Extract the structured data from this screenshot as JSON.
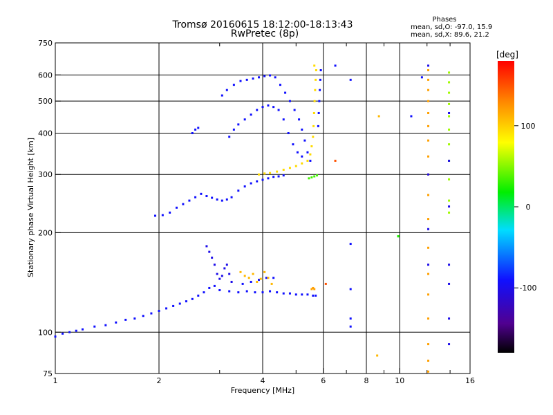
{
  "chart_data": {
    "type": "scatter",
    "title": "Tromsø 20160615 18:12:00-18:13:43",
    "subtitle": "RwPretec (8p)",
    "stats": {
      "heading": "Phases",
      "line_o": "mean, sd,O: -97.0, 15.9",
      "line_x": "mean, sd,X:  89.6, 21.2"
    },
    "xlabel": "Frequency [MHz]",
    "ylabel": "Stationary phase Virtual Height [km]",
    "x_scale": "log",
    "y_scale": "log",
    "xlim": [
      1,
      16
    ],
    "ylim": [
      75,
      750
    ],
    "grid": true,
    "x_ticks": [
      1,
      2,
      4,
      6,
      8,
      10,
      16
    ],
    "x_tick_labels": [
      "1",
      "2",
      "4",
      "6",
      "8",
      "10",
      "16"
    ],
    "x_grid_lines": [
      2,
      4,
      6,
      8,
      10
    ],
    "x_minor_ticks": [
      3,
      5,
      7,
      9,
      12,
      14
    ],
    "y_ticks": [
      75,
      100,
      200,
      300,
      400,
      500,
      600,
      750
    ],
    "y_tick_labels": [
      "75",
      "100",
      "200",
      "300",
      "400",
      "500",
      "600",
      "750"
    ],
    "y_grid_lines": [
      100,
      200,
      300,
      400,
      500,
      600
    ],
    "colorbar": {
      "label": "[deg]",
      "range": [
        -180,
        180
      ],
      "ticks": [
        100,
        0,
        -100
      ],
      "tick_labels": [
        "100",
        "0",
        "-100"
      ],
      "colormap": "rainbow (black-purple-blue-cyan-green-yellow-orange-red)"
    },
    "traces": [
      {
        "name": "",
        "phase": -100,
        "points": [
          [
            1.0,
            97
          ],
          [
            1.05,
            99
          ],
          [
            1.1,
            100
          ],
          [
            1.15,
            101
          ],
          [
            1.2,
            102
          ],
          [
            1.3,
            104
          ],
          [
            1.4,
            105
          ],
          [
            1.5,
            107
          ],
          [
            1.6,
            109
          ],
          [
            1.7,
            110
          ],
          [
            1.8,
            112
          ],
          [
            1.9,
            114
          ],
          [
            2.0,
            116
          ],
          [
            2.1,
            118
          ],
          [
            2.2,
            120
          ],
          [
            2.3,
            122
          ],
          [
            2.4,
            124
          ],
          [
            2.5,
            126
          ],
          [
            2.6,
            129
          ],
          [
            2.7,
            132
          ],
          [
            2.8,
            136
          ],
          [
            2.9,
            138
          ],
          [
            3.0,
            134
          ],
          [
            3.2,
            133
          ],
          [
            3.4,
            132
          ],
          [
            3.6,
            133
          ],
          [
            3.8,
            132
          ],
          [
            4.0,
            132
          ],
          [
            4.2,
            133
          ],
          [
            4.4,
            132
          ],
          [
            4.6,
            131
          ],
          [
            4.8,
            131
          ],
          [
            5.0,
            130
          ],
          [
            5.2,
            130
          ],
          [
            5.4,
            130
          ],
          [
            5.6,
            129
          ],
          [
            5.7,
            129
          ]
        ]
      },
      {
        "name": "",
        "phase": -110,
        "points": [
          [
            2.75,
            182
          ],
          [
            2.8,
            175
          ],
          [
            2.85,
            168
          ],
          [
            2.9,
            160
          ],
          [
            2.95,
            150
          ],
          [
            3.0,
            145
          ],
          [
            3.05,
            148
          ],
          [
            3.1,
            156
          ],
          [
            3.15,
            160
          ],
          [
            3.2,
            150
          ],
          [
            3.25,
            142
          ]
        ]
      },
      {
        "name": "",
        "phase": -100,
        "points": [
          [
            3.5,
            140
          ],
          [
            3.7,
            142
          ],
          [
            3.9,
            144
          ],
          [
            4.1,
            146
          ],
          [
            4.3,
            146
          ]
        ]
      },
      {
        "name": "",
        "phase": 110,
        "points": [
          [
            3.45,
            152
          ],
          [
            3.55,
            148
          ],
          [
            3.65,
            146
          ],
          [
            3.75,
            150
          ],
          [
            3.85,
            142
          ],
          [
            3.95,
            145
          ],
          [
            4.05,
            152
          ],
          [
            4.15,
            146
          ],
          [
            4.25,
            140
          ]
        ]
      },
      {
        "name": "",
        "phase": 120,
        "points": [
          [
            5.55,
            135
          ],
          [
            5.6,
            136
          ],
          [
            5.65,
            135
          ]
        ]
      },
      {
        "name": "",
        "phase": -100,
        "points": [
          [
            1.95,
            225
          ],
          [
            2.05,
            226
          ],
          [
            2.15,
            230
          ],
          [
            2.25,
            238
          ],
          [
            2.35,
            244
          ],
          [
            2.45,
            250
          ],
          [
            2.55,
            256
          ],
          [
            2.65,
            262
          ],
          [
            2.75,
            258
          ],
          [
            2.85,
            255
          ],
          [
            2.95,
            252
          ],
          [
            3.05,
            250
          ],
          [
            3.15,
            252
          ],
          [
            3.25,
            256
          ],
          [
            3.4,
            268
          ],
          [
            3.55,
            276
          ],
          [
            3.7,
            282
          ],
          [
            3.85,
            286
          ],
          [
            4.0,
            289
          ],
          [
            4.15,
            292
          ],
          [
            4.3,
            295
          ],
          [
            4.45,
            296
          ],
          [
            4.6,
            298
          ]
        ]
      },
      {
        "name": "",
        "phase": 95,
        "points": [
          [
            3.9,
            300
          ],
          [
            4.05,
            302
          ],
          [
            4.2,
            303
          ],
          [
            4.4,
            306
          ],
          [
            4.6,
            310
          ],
          [
            4.8,
            314
          ],
          [
            5.0,
            318
          ],
          [
            5.2,
            324
          ],
          [
            5.4,
            330
          ],
          [
            5.5,
            345
          ],
          [
            5.55,
            365
          ],
          [
            5.6,
            390
          ],
          [
            5.62,
            420
          ],
          [
            5.64,
            460
          ],
          [
            5.66,
            500
          ],
          [
            5.68,
            540
          ],
          [
            5.7,
            580
          ],
          [
            5.72,
            620
          ],
          [
            5.65,
            640
          ]
        ]
      },
      {
        "name": "",
        "phase": 20,
        "points": [
          [
            5.45,
            292
          ],
          [
            5.55,
            294
          ],
          [
            5.65,
            296
          ],
          [
            5.75,
            298
          ]
        ]
      },
      {
        "name": "",
        "phase": -100,
        "points": [
          [
            3.2,
            390
          ],
          [
            3.3,
            410
          ],
          [
            3.4,
            425
          ],
          [
            3.55,
            440
          ],
          [
            3.7,
            455
          ],
          [
            3.85,
            470
          ],
          [
            4.0,
            480
          ],
          [
            4.15,
            485
          ],
          [
            4.3,
            480
          ],
          [
            4.45,
            470
          ],
          [
            4.6,
            440
          ],
          [
            4.75,
            400
          ],
          [
            4.9,
            370
          ],
          [
            5.05,
            350
          ],
          [
            5.2,
            340
          ]
        ]
      },
      {
        "name": "",
        "phase": -100,
        "points": [
          [
            3.05,
            520
          ],
          [
            3.15,
            540
          ],
          [
            3.3,
            560
          ],
          [
            3.45,
            575
          ],
          [
            3.6,
            580
          ],
          [
            3.75,
            585
          ],
          [
            3.9,
            590
          ],
          [
            4.05,
            595
          ],
          [
            4.2,
            598
          ],
          [
            4.35,
            590
          ],
          [
            4.5,
            560
          ],
          [
            4.65,
            530
          ],
          [
            4.8,
            500
          ],
          [
            4.95,
            470
          ],
          [
            5.1,
            440
          ],
          [
            5.2,
            410
          ],
          [
            5.3,
            380
          ],
          [
            5.4,
            350
          ],
          [
            5.5,
            330
          ]
        ]
      },
      {
        "name": "",
        "phase": -100,
        "points": [
          [
            5.8,
            420
          ],
          [
            5.82,
            460
          ],
          [
            5.84,
            500
          ],
          [
            5.86,
            540
          ],
          [
            5.88,
            580
          ],
          [
            5.9,
            620
          ]
        ]
      },
      {
        "name": "",
        "phase": -100,
        "points": [
          [
            2.5,
            400
          ],
          [
            2.55,
            410
          ],
          [
            2.6,
            415
          ]
        ]
      },
      {
        "name": "",
        "phase": 120,
        "points": [
          [
            12.1,
            620
          ],
          [
            12.1,
            580
          ],
          [
            12.1,
            540
          ],
          [
            12.1,
            500
          ],
          [
            12.1,
            460
          ],
          [
            12.1,
            420
          ],
          [
            12.1,
            380
          ],
          [
            12.1,
            340
          ],
          [
            12.1,
            300
          ],
          [
            12.1,
            260
          ],
          [
            12.1,
            220
          ],
          [
            12.1,
            180
          ],
          [
            12.1,
            150
          ],
          [
            12.1,
            130
          ],
          [
            12.1,
            110
          ],
          [
            12.1,
            92
          ],
          [
            12.1,
            82
          ],
          [
            12.1,
            76
          ]
        ]
      },
      {
        "name": "",
        "phase": 50,
        "points": [
          [
            13.9,
            610
          ],
          [
            13.9,
            570
          ],
          [
            13.9,
            530
          ],
          [
            13.9,
            490
          ],
          [
            13.9,
            450
          ],
          [
            13.9,
            410
          ],
          [
            13.9,
            370
          ],
          [
            13.9,
            330
          ],
          [
            13.9,
            290
          ],
          [
            13.9,
            250
          ],
          [
            13.9,
            230
          ]
        ]
      },
      {
        "name": "",
        "phase": -110,
        "points": [
          [
            13.9,
            460
          ],
          [
            13.9,
            330
          ],
          [
            13.9,
            240
          ],
          [
            13.9,
            160
          ],
          [
            13.9,
            140
          ],
          [
            13.9,
            110
          ],
          [
            13.9,
            92
          ],
          [
            12.1,
            640
          ],
          [
            12.1,
            300
          ],
          [
            12.1,
            205
          ],
          [
            12.1,
            160
          ]
        ]
      },
      {
        "name": "",
        "phase": -100,
        "points": [
          [
            6.5,
            640
          ],
          [
            7.2,
            580
          ],
          [
            7.2,
            185
          ],
          [
            7.2,
            135
          ],
          [
            7.2,
            110
          ],
          [
            7.2,
            104
          ]
        ]
      },
      {
        "name": "",
        "phase": 150,
        "points": [
          [
            6.1,
            140
          ],
          [
            6.5,
            330
          ]
        ]
      },
      {
        "name": "",
        "phase": 110,
        "points": [
          [
            8.7,
            450
          ],
          [
            8.6,
            85
          ]
        ]
      },
      {
        "name": "",
        "phase": 10,
        "points": [
          [
            9.9,
            195
          ],
          [
            9.9,
            195
          ]
        ]
      },
      {
        "name": "",
        "phase": -100,
        "points": [
          [
            10.8,
            450
          ],
          [
            11.6,
            590
          ]
        ]
      }
    ]
  }
}
